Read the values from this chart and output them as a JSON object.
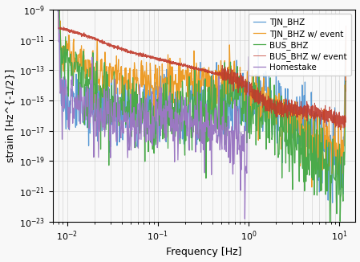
{
  "xlabel": "Frequency [Hz]",
  "ylabel": "strain [Hz^{-1/2}]",
  "xlim": [
    0.007,
    15
  ],
  "ylim": [
    1e-23,
    1e-09
  ],
  "legend_labels": [
    "TJN_BHZ",
    "TJN_BHZ w/ event",
    "BUS_BHZ",
    "BUS_BHZ w/ event",
    "Homestake"
  ],
  "line_colors": [
    "#5b9bd5",
    "#ed9c28",
    "#4aaa4a",
    "#c0392b",
    "#9b78c2"
  ],
  "background_color": "#f8f8f8",
  "grid_color": "#cccccc"
}
